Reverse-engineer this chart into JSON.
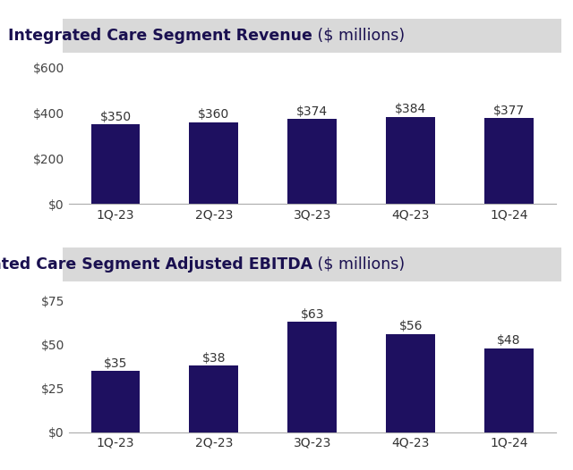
{
  "categories": [
    "1Q-23",
    "2Q-23",
    "3Q-23",
    "4Q-23",
    "1Q-24"
  ],
  "revenue_values": [
    350,
    360,
    374,
    384,
    377
  ],
  "ebitda_values": [
    35,
    38,
    63,
    56,
    48
  ],
  "bar_color": "#1e1060",
  "revenue_title_bold": "Integrated Care Segment Revenue",
  "revenue_title_normal": " ($ millions)",
  "ebitda_title_bold": "Integrated Care Segment Adjusted EBITDA",
  "ebitda_title_normal": " ($ millions)",
  "revenue_yticks": [
    0,
    200,
    400,
    600
  ],
  "revenue_ytick_labels": [
    "$0",
    "$200",
    "$400",
    "$600"
  ],
  "ebitda_yticks": [
    0,
    25,
    50,
    75
  ],
  "ebitda_ytick_labels": [
    "$0",
    "$25",
    "$50",
    "$75"
  ],
  "revenue_ylim": [
    0,
    650
  ],
  "ebitda_ylim": [
    0,
    84
  ],
  "title_bg_color": "#d9d9d9",
  "plot_bg_color": "#ffffff",
  "figure_bg_color": "#ffffff",
  "title_fontsize": 12.5,
  "tick_fontsize": 10,
  "value_fontsize": 10
}
